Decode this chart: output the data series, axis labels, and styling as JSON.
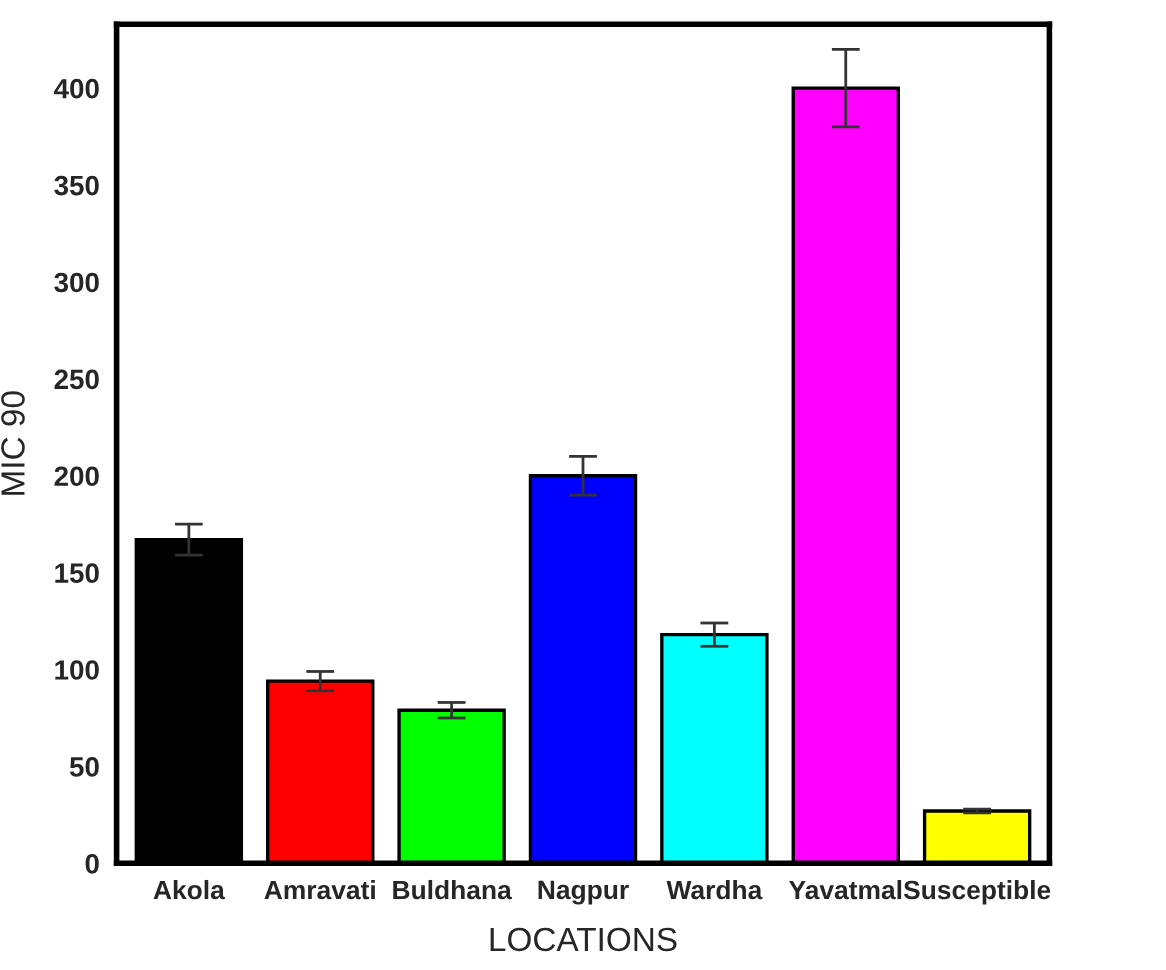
{
  "chart_data": {
    "type": "bar",
    "xlabel": "LOCATIONS",
    "ylabel": "MIC 90",
    "categories": [
      "Akola",
      "Amravati",
      "Buldhana",
      "Nagpur",
      "Wardha",
      "Yavatmal",
      "Susceptible"
    ],
    "values": [
      167,
      94,
      79,
      200,
      118,
      400,
      27
    ],
    "errors": [
      8,
      5,
      4,
      10,
      6,
      20,
      1
    ],
    "colors": [
      "#000000",
      "#ff0000",
      "#00ff00",
      "#0000ff",
      "#00ffff",
      "#ff00ff",
      "#ffff00"
    ],
    "ylim": [
      0,
      433
    ],
    "yticks": [
      0,
      50,
      100,
      150,
      200,
      250,
      300,
      350,
      400
    ],
    "grid": false
  }
}
